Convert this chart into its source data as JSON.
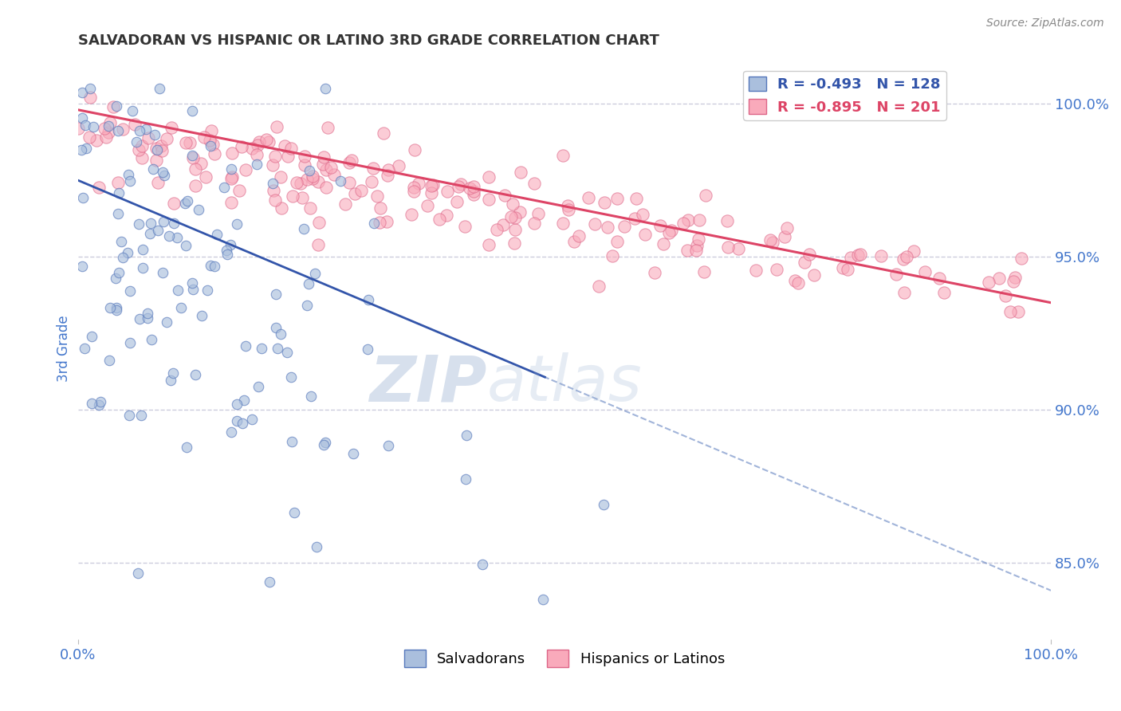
{
  "title": "SALVADORAN VS HISPANIC OR LATINO 3RD GRADE CORRELATION CHART",
  "source_text": "Source: ZipAtlas.com",
  "ylabel": "3rd Grade",
  "right_ytick_labels": [
    "100.0%",
    "95.0%",
    "90.0%",
    "85.0%"
  ],
  "right_ytick_vals": [
    1.0,
    0.95,
    0.9,
    0.85
  ],
  "xlim": [
    0.0,
    1.0
  ],
  "ylim": [
    0.825,
    1.015
  ],
  "xtick_labels": [
    "0.0%",
    "100.0%"
  ],
  "xtick_vals": [
    0.0,
    1.0
  ],
  "blue_R": -0.493,
  "blue_N": 128,
  "pink_R": -0.895,
  "pink_N": 201,
  "blue_color": "#aabfdd",
  "pink_color": "#f9aabb",
  "blue_edge_color": "#5577bb",
  "pink_edge_color": "#dd6688",
  "blue_line_color": "#3355aa",
  "pink_line_color": "#dd4466",
  "blue_marker_size": 9,
  "pink_marker_size": 11,
  "legend_label_blue": "Salvadorans",
  "legend_label_pink": "Hispanics or Latinos",
  "watermark_zip": "ZIP",
  "watermark_atlas": "atlas",
  "title_fontsize": 13,
  "axis_label_color": "#4477cc",
  "grid_color": "#ccccdd",
  "background_color": "#ffffff",
  "pink_trend_x0": 0.0,
  "pink_trend_y0": 0.998,
  "pink_trend_x1": 1.0,
  "pink_trend_y1": 0.935,
  "blue_trend_x0": 0.0,
  "blue_trend_y0": 0.975,
  "blue_trend_x1": 0.5,
  "blue_trend_y1": 0.908
}
